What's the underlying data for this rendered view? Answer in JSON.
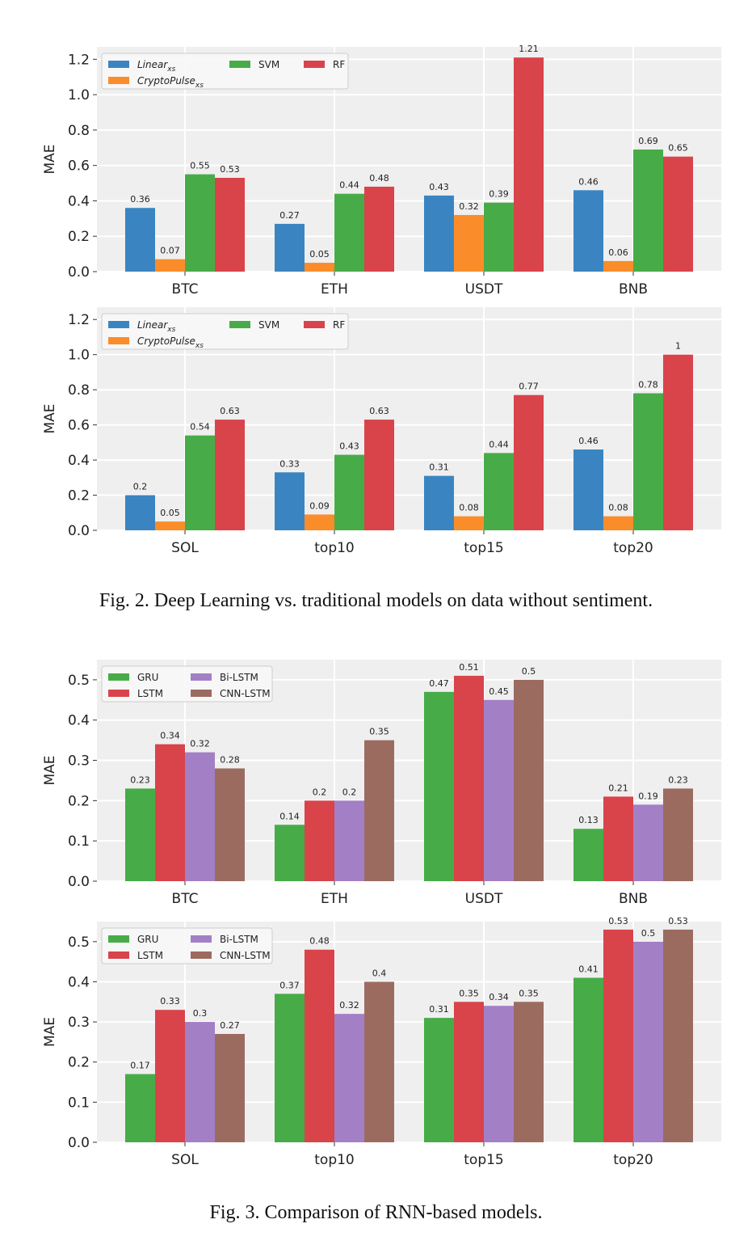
{
  "figures": [
    {
      "caption": "Fig. 2.  Deep Learning vs. traditional models on data without sentiment."
    },
    {
      "caption": "Fig. 3.  Comparison of RNN-based models."
    }
  ],
  "chart_data": [
    {
      "type": "bar",
      "title": "",
      "xlabel": "",
      "ylabel": "MAE",
      "ylim": [
        0,
        1.27
      ],
      "yticks": [
        "0.0",
        "0.2",
        "0.4",
        "0.6",
        "0.8",
        "1.0",
        "1.2"
      ],
      "yticks_values": [
        0,
        0.2,
        0.4,
        0.6,
        0.8,
        1.0,
        1.2
      ],
      "grid": true,
      "legend_position": "top-left",
      "legend_columns": 3,
      "categories": [
        "BTC",
        "ETH",
        "USDT",
        "BNB"
      ],
      "series": [
        {
          "name": "Linear",
          "subscript": "xs",
          "italic": true,
          "color": "#3a85c1",
          "values": [
            0.36,
            0.27,
            0.43,
            0.46
          ],
          "labels": [
            "0.36",
            "0.27",
            "0.43",
            "0.46"
          ]
        },
        {
          "name": "CryptoPulse",
          "subscript": "xs",
          "italic": true,
          "color": "#fa8d2a",
          "values": [
            0.07,
            0.05,
            0.32,
            0.06
          ],
          "labels": [
            "0.07",
            "0.05",
            "0.32",
            "0.06"
          ]
        },
        {
          "name": "SVM",
          "subscript": "",
          "italic": false,
          "color": "#47ac47",
          "values": [
            0.55,
            0.44,
            0.39,
            0.69
          ],
          "labels": [
            "0.55",
            "0.44",
            "0.39",
            "0.69"
          ]
        },
        {
          "name": "RF",
          "subscript": "",
          "italic": false,
          "color": "#d9434a",
          "values": [
            0.53,
            0.48,
            1.21,
            0.65
          ],
          "labels": [
            "0.53",
            "0.48",
            "1.21",
            "0.65"
          ]
        }
      ]
    },
    {
      "type": "bar",
      "title": "",
      "xlabel": "",
      "ylabel": "MAE",
      "ylim": [
        0,
        1.27
      ],
      "yticks": [
        "0.0",
        "0.2",
        "0.4",
        "0.6",
        "0.8",
        "1.0",
        "1.2"
      ],
      "yticks_values": [
        0,
        0.2,
        0.4,
        0.6,
        0.8,
        1.0,
        1.2
      ],
      "grid": true,
      "legend_position": "top-left",
      "legend_columns": 3,
      "categories": [
        "SOL",
        "top10",
        "top15",
        "top20"
      ],
      "series": [
        {
          "name": "Linear",
          "subscript": "xs",
          "italic": true,
          "color": "#3a85c1",
          "values": [
            0.2,
            0.33,
            0.31,
            0.46
          ],
          "labels": [
            "0.2",
            "0.33",
            "0.31",
            "0.46"
          ]
        },
        {
          "name": "CryptoPulse",
          "subscript": "xs",
          "italic": true,
          "color": "#fa8d2a",
          "values": [
            0.05,
            0.09,
            0.08,
            0.08
          ],
          "labels": [
            "0.05",
            "0.09",
            "0.08",
            "0.08"
          ]
        },
        {
          "name": "SVM",
          "subscript": "",
          "italic": false,
          "color": "#47ac47",
          "values": [
            0.54,
            0.43,
            0.44,
            0.78
          ],
          "labels": [
            "0.54",
            "0.43",
            "0.44",
            "0.78"
          ]
        },
        {
          "name": "RF",
          "subscript": "",
          "italic": false,
          "color": "#d9434a",
          "values": [
            0.63,
            0.63,
            0.77,
            1.0
          ],
          "labels": [
            "0.63",
            "0.63",
            "0.77",
            "1"
          ]
        }
      ]
    },
    {
      "type": "bar",
      "title": "",
      "xlabel": "",
      "ylabel": "MAE",
      "ylim": [
        0,
        0.55
      ],
      "yticks": [
        "0.0",
        "0.1",
        "0.2",
        "0.3",
        "0.4",
        "0.5"
      ],
      "yticks_values": [
        0,
        0.1,
        0.2,
        0.3,
        0.4,
        0.5
      ],
      "grid": true,
      "legend_position": "top-left",
      "legend_columns": 2,
      "categories": [
        "BTC",
        "ETH",
        "USDT",
        "BNB"
      ],
      "series": [
        {
          "name": "GRU",
          "subscript": "",
          "italic": false,
          "color": "#47ac47",
          "values": [
            0.23,
            0.14,
            0.47,
            0.13
          ],
          "labels": [
            "0.23",
            "0.14",
            "0.47",
            "0.13"
          ]
        },
        {
          "name": "LSTM",
          "subscript": "",
          "italic": false,
          "color": "#d9434a",
          "values": [
            0.34,
            0.2,
            0.51,
            0.21
          ],
          "labels": [
            "0.34",
            "0.2",
            "0.51",
            "0.21"
          ]
        },
        {
          "name": "Bi-LSTM",
          "subscript": "",
          "italic": false,
          "color": "#a37fc6",
          "values": [
            0.32,
            0.2,
            0.45,
            0.19
          ],
          "labels": [
            "0.32",
            "0.2",
            "0.45",
            "0.19"
          ]
        },
        {
          "name": "CNN-LSTM",
          "subscript": "",
          "italic": false,
          "color": "#9c6b60",
          "values": [
            0.28,
            0.35,
            0.5,
            0.23
          ],
          "labels": [
            "0.28",
            "0.35",
            "0.5",
            "0.23"
          ]
        }
      ]
    },
    {
      "type": "bar",
      "title": "",
      "xlabel": "",
      "ylabel": "MAE",
      "ylim": [
        0,
        0.55
      ],
      "yticks": [
        "0.0",
        "0.1",
        "0.2",
        "0.3",
        "0.4",
        "0.5"
      ],
      "yticks_values": [
        0,
        0.1,
        0.2,
        0.3,
        0.4,
        0.5
      ],
      "grid": true,
      "legend_position": "top-left",
      "legend_columns": 2,
      "categories": [
        "SOL",
        "top10",
        "top15",
        "top20"
      ],
      "series": [
        {
          "name": "GRU",
          "subscript": "",
          "italic": false,
          "color": "#47ac47",
          "values": [
            0.17,
            0.37,
            0.31,
            0.41
          ],
          "labels": [
            "0.17",
            "0.37",
            "0.31",
            "0.41"
          ]
        },
        {
          "name": "LSTM",
          "subscript": "",
          "italic": false,
          "color": "#d9434a",
          "values": [
            0.33,
            0.48,
            0.35,
            0.53
          ],
          "labels": [
            "0.33",
            "0.48",
            "0.35",
            "0.53"
          ]
        },
        {
          "name": "Bi-LSTM",
          "subscript": "",
          "italic": false,
          "color": "#a37fc6",
          "values": [
            0.3,
            0.32,
            0.34,
            0.5
          ],
          "labels": [
            "0.3",
            "0.32",
            "0.34",
            "0.5"
          ]
        },
        {
          "name": "CNN-LSTM",
          "subscript": "",
          "italic": false,
          "color": "#9c6b60",
          "values": [
            0.27,
            0.4,
            0.35,
            0.53
          ],
          "labels": [
            "0.27",
            "0.4",
            "0.35",
            "0.53"
          ]
        }
      ]
    }
  ]
}
